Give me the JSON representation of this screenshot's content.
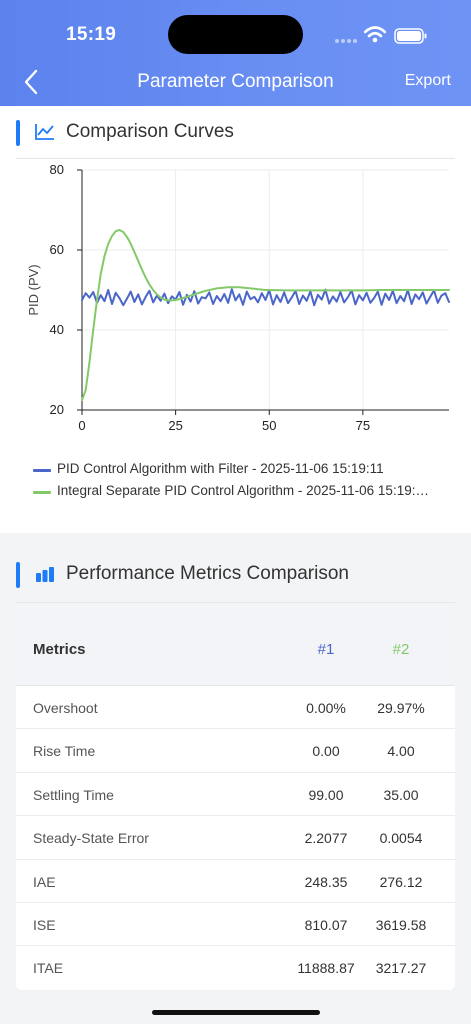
{
  "status_bar": {
    "time": "15:19"
  },
  "nav": {
    "title": "Parameter Comparison",
    "export_label": "Export"
  },
  "colors": {
    "series1": "#4a66c8",
    "series2": "#83c96a",
    "accent": "#1f7cf6"
  },
  "curves_section": {
    "title": "Comparison Curves",
    "icon": "line-chart-icon"
  },
  "chart_data": {
    "type": "line",
    "ylabel": "PID (PV)",
    "xlabel": "",
    "xlim": [
      0,
      98
    ],
    "ylim": [
      20,
      80
    ],
    "x_ticks": [
      0,
      25,
      50,
      75
    ],
    "y_ticks": [
      20,
      40,
      60,
      80
    ],
    "grid": true,
    "legend": "bottom",
    "series": [
      {
        "name": "PID Control Algorithm with Filter - 2025-11-06 15:19:11",
        "color": "#4a66c8",
        "x": [
          0,
          1,
          2,
          3,
          4,
          5,
          6,
          7,
          8,
          9,
          10,
          11,
          12,
          13,
          14,
          15,
          16,
          17,
          18,
          19,
          20,
          21,
          22,
          23,
          24,
          25,
          26,
          27,
          28,
          29,
          30,
          31,
          32,
          33,
          34,
          35,
          36,
          37,
          38,
          39,
          40,
          41,
          42,
          43,
          44,
          45,
          46,
          47,
          48,
          49,
          50,
          51,
          52,
          53,
          54,
          55,
          56,
          57,
          58,
          59,
          60,
          61,
          62,
          63,
          64,
          65,
          66,
          67,
          68,
          69,
          70,
          71,
          72,
          73,
          74,
          75,
          76,
          77,
          78,
          79,
          80,
          81,
          82,
          83,
          84,
          85,
          86,
          87,
          88,
          89,
          90,
          91,
          92,
          93,
          94,
          95,
          96,
          97,
          98
        ],
        "y": [
          47.5,
          49.2,
          48.1,
          49.5,
          46.8,
          48.7,
          47.2,
          50.0,
          46.5,
          49.3,
          48.0,
          46.2,
          47.8,
          49.6,
          47.0,
          48.9,
          46.4,
          48.3,
          49.8,
          46.9,
          48.6,
          47.3,
          49.1,
          46.7,
          48.4,
          47.6,
          49.5,
          46.3,
          48.8,
          47.1,
          49.7,
          46.6,
          48.2,
          47.9,
          49.4,
          46.5,
          48.5,
          47.2,
          49.0,
          46.8,
          50.2,
          47.4,
          48.9,
          46.3,
          49.6,
          47.7,
          48.3,
          46.9,
          49.2,
          47.5,
          50.0,
          46.4,
          48.7,
          47.0,
          49.4,
          46.7,
          48.1,
          49.8,
          46.5,
          48.6,
          47.3,
          49.7,
          46.2,
          48.8,
          47.6,
          50.1,
          46.6,
          48.4,
          47.1,
          49.5,
          46.9,
          48.2,
          49.9,
          46.4,
          48.7,
          47.4,
          49.3,
          46.8,
          48.0,
          49.6,
          46.3,
          49.1,
          47.5,
          49.8,
          46.7,
          48.5,
          47.2,
          50.0,
          46.5,
          48.9,
          47.7,
          49.4,
          46.6,
          48.3,
          49.9,
          46.8,
          48.6,
          49.2,
          47.0
        ]
      },
      {
        "name": "Integral Separate PID Control Algorithm - 2025-11-06 15:19:…",
        "color": "#83c96a",
        "x": [
          0,
          1,
          2,
          3,
          4,
          5,
          6,
          7,
          8,
          9,
          10,
          11,
          12,
          13,
          14,
          15,
          16,
          17,
          18,
          19,
          20,
          21,
          22,
          23,
          24,
          25,
          26,
          27,
          28,
          29,
          30,
          31,
          32,
          33,
          34,
          35,
          36,
          37,
          38,
          39,
          40,
          41,
          42,
          43,
          44,
          45,
          46,
          47,
          48,
          49,
          50,
          55,
          60,
          65,
          70,
          75,
          80,
          85,
          90,
          95,
          98
        ],
        "y": [
          22.5,
          25.0,
          32.0,
          40.0,
          47.5,
          54.0,
          58.5,
          61.5,
          63.5,
          64.7,
          65.0,
          64.5,
          63.3,
          61.6,
          59.5,
          57.3,
          55.1,
          53.1,
          51.4,
          50.0,
          48.9,
          48.1,
          47.6,
          47.4,
          47.4,
          47.5,
          47.7,
          48.0,
          48.3,
          48.6,
          48.9,
          49.2,
          49.5,
          49.8,
          50.0,
          50.2,
          50.4,
          50.5,
          50.6,
          50.7,
          50.7,
          50.7,
          50.7,
          50.6,
          50.5,
          50.4,
          50.3,
          50.2,
          50.1,
          50.0,
          50.0,
          49.9,
          49.9,
          49.9,
          49.9,
          49.9,
          50.0,
          50.0,
          50.0,
          50.0,
          50.0
        ]
      }
    ]
  },
  "metrics_section": {
    "title": "Performance Metrics Comparison",
    "icon": "bar-chart-icon",
    "header": {
      "name": "Metrics",
      "col1": "#1",
      "col2": "#2"
    },
    "rows": [
      {
        "name": "Overshoot",
        "v1": "0.00%",
        "v2": "29.97%"
      },
      {
        "name": "Rise Time",
        "v1": "0.00",
        "v2": "4.00"
      },
      {
        "name": "Settling Time",
        "v1": "99.00",
        "v2": "35.00"
      },
      {
        "name": "Steady-State Error",
        "v1": "2.2077",
        "v2": "0.0054"
      },
      {
        "name": "IAE",
        "v1": "248.35",
        "v2": "276.12"
      },
      {
        "name": "ISE",
        "v1": "810.07",
        "v2": "3619.58"
      },
      {
        "name": "ITAE",
        "v1": "11888.87",
        "v2": "3217.27"
      }
    ]
  }
}
